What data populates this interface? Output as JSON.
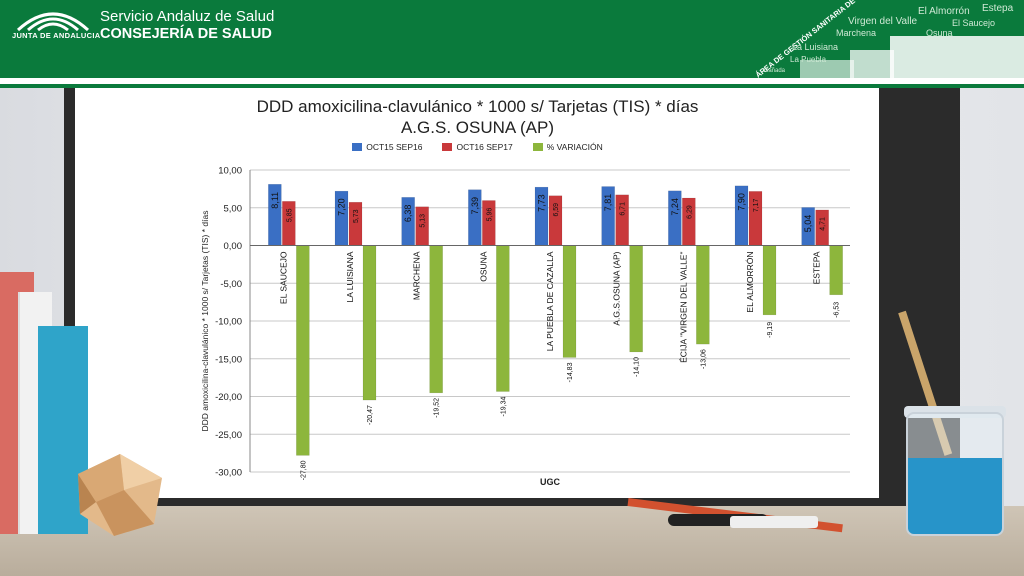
{
  "header": {
    "logo_caption": "JUNTA DE ANDALUCIA",
    "org_line1": "Servicio Andaluz de Salud",
    "org_line2": "CONSEJERÍA DE SALUD",
    "deco_main": "ÁREA DE GESTIÓN SANITARIA DE OSUNA",
    "deco_words": [
      "Estepa",
      "El Almorrón",
      "Virgen del Valle",
      "El Saucejo",
      "La Luisiana",
      "Osuna",
      "Marchena",
      "La Puebla",
      "Cañada"
    ]
  },
  "colors": {
    "header_green": "#0a7a3c",
    "series_blue": "#3a6fc4",
    "series_red": "#c9393b",
    "series_green": "#8db63c"
  },
  "chart_data": {
    "type": "bar",
    "title_line1": "DDD amoxicilina-clavulánico * 1000 s/ Tarjetas (TIS) * días",
    "title_line2": "A.G.S. OSUNA (AP)",
    "xlabel": "UGC",
    "ylabel": "DDD amoxicilina-clavulánico * 1000 s/ Tarjetas (TIS) * días",
    "ylim": [
      -30,
      10
    ],
    "yticks": [
      "10,00",
      "5,00",
      "0,00",
      "-5,00",
      "-10,00",
      "-15,00",
      "-20,00",
      "-25,00",
      "-30,00"
    ],
    "grid": true,
    "legend_position": "top-center",
    "categories": [
      "EL SAUCEJO",
      "LA LUISIANA",
      "MARCHENA",
      "OSUNA",
      "LA PUEBLA DE CAZALLA",
      "A.G.S.OSUNA (AP)",
      "ÉCIJA \"VIRGEN DEL VALLE\"",
      "EL ALMORRÓN",
      "ESTEPA"
    ],
    "series": [
      {
        "name": "OCT15 SEP16",
        "values": [
          8.11,
          7.2,
          6.38,
          7.39,
          7.73,
          7.81,
          7.24,
          7.9,
          5.04
        ],
        "labels": [
          "8,11",
          "7,20",
          "6,38",
          "7,39",
          "7,73",
          "7,81",
          "7,24",
          "7,90",
          "5,04"
        ]
      },
      {
        "name": "OCT16 SEP17",
        "values": [
          5.85,
          5.73,
          5.13,
          5.96,
          6.59,
          6.71,
          6.29,
          7.17,
          4.71
        ],
        "labels": [
          "5,85",
          "5,73",
          "5,13",
          "5,96",
          "6,59",
          "6,71",
          "6,29",
          "7,17",
          "4,71"
        ]
      },
      {
        "name": "% VARIACIÓN",
        "values": [
          -27.8,
          -20.47,
          -19.52,
          -19.34,
          -14.83,
          -14.1,
          -13.06,
          -9.19,
          -6.53
        ],
        "labels": [
          "-27,80",
          "-20,47",
          "-19,52",
          "-19,34",
          "-14,83",
          "-14,10",
          "-13,06",
          "-9,19",
          "-6,53"
        ]
      }
    ]
  }
}
